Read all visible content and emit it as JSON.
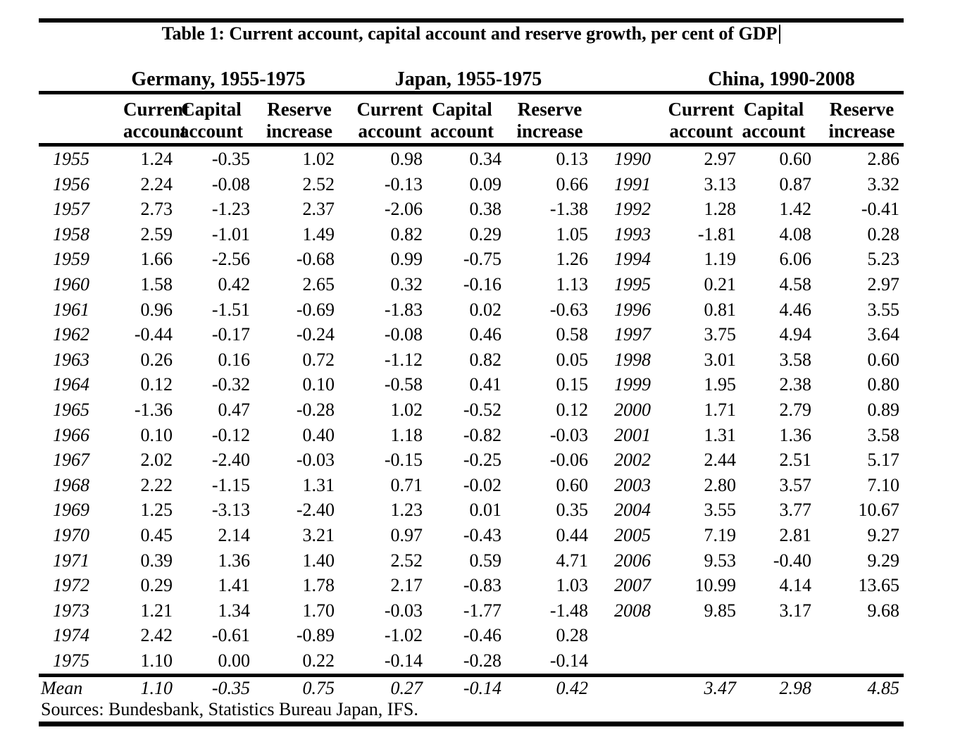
{
  "title": "Table 1: Current account, capital account and reserve growth, per cent of GDP",
  "groups": [
    {
      "label": "Germany, 1955-1975"
    },
    {
      "label": "Japan, 1955-1975"
    },
    {
      "label": "China, 1990-2008"
    }
  ],
  "col_headers": [
    {
      "line1": "Current",
      "line2": "account"
    },
    {
      "line1": "Capital",
      "line2": "account"
    },
    {
      "line1": "Reserve",
      "line2": "increase"
    }
  ],
  "rows": [
    {
      "year": "1955",
      "germany": [
        "1.24",
        "-0.35",
        "1.02"
      ],
      "japan": [
        "0.98",
        "0.34",
        "0.13"
      ],
      "china_year": "1990",
      "china": [
        "2.97",
        "0.60",
        "2.86"
      ]
    },
    {
      "year": "1956",
      "germany": [
        "2.24",
        "-0.08",
        "2.52"
      ],
      "japan": [
        "-0.13",
        "0.09",
        "0.66"
      ],
      "china_year": "1991",
      "china": [
        "3.13",
        "0.87",
        "3.32"
      ]
    },
    {
      "year": "1957",
      "germany": [
        "2.73",
        "-1.23",
        "2.37"
      ],
      "japan": [
        "-2.06",
        "0.38",
        "-1.38"
      ],
      "china_year": "1992",
      "china": [
        "1.28",
        "1.42",
        "-0.41"
      ]
    },
    {
      "year": "1958",
      "germany": [
        "2.59",
        "-1.01",
        "1.49"
      ],
      "japan": [
        "0.82",
        "0.29",
        "1.05"
      ],
      "china_year": "1993",
      "china": [
        "-1.81",
        "4.08",
        "0.28"
      ]
    },
    {
      "year": "1959",
      "germany": [
        "1.66",
        "-2.56",
        "-0.68"
      ],
      "japan": [
        "0.99",
        "-0.75",
        "1.26"
      ],
      "china_year": "1994",
      "china": [
        "1.19",
        "6.06",
        "5.23"
      ]
    },
    {
      "year": "1960",
      "germany": [
        "1.58",
        "0.42",
        "2.65"
      ],
      "japan": [
        "0.32",
        "-0.16",
        "1.13"
      ],
      "china_year": "1995",
      "china": [
        "0.21",
        "4.58",
        "2.97"
      ]
    },
    {
      "year": "1961",
      "germany": [
        "0.96",
        "-1.51",
        "-0.69"
      ],
      "japan": [
        "-1.83",
        "0.02",
        "-0.63"
      ],
      "china_year": "1996",
      "china": [
        "0.81",
        "4.46",
        "3.55"
      ]
    },
    {
      "year": "1962",
      "germany": [
        "-0.44",
        "-0.17",
        "-0.24"
      ],
      "japan": [
        "-0.08",
        "0.46",
        "0.58"
      ],
      "china_year": "1997",
      "china": [
        "3.75",
        "4.94",
        "3.64"
      ]
    },
    {
      "year": "1963",
      "germany": [
        "0.26",
        "0.16",
        "0.72"
      ],
      "japan": [
        "-1.12",
        "0.82",
        "0.05"
      ],
      "china_year": "1998",
      "china": [
        "3.01",
        "3.58",
        "0.60"
      ]
    },
    {
      "year": "1964",
      "germany": [
        "0.12",
        "-0.32",
        "0.10"
      ],
      "japan": [
        "-0.58",
        "0.41",
        "0.15"
      ],
      "china_year": "1999",
      "china": [
        "1.95",
        "2.38",
        "0.80"
      ]
    },
    {
      "year": "1965",
      "germany": [
        "-1.36",
        "0.47",
        "-0.28"
      ],
      "japan": [
        "1.02",
        "-0.52",
        "0.12"
      ],
      "china_year": "2000",
      "china": [
        "1.71",
        "2.79",
        "0.89"
      ]
    },
    {
      "year": "1966",
      "germany": [
        "0.10",
        "-0.12",
        "0.40"
      ],
      "japan": [
        "1.18",
        "-0.82",
        "-0.03"
      ],
      "china_year": "2001",
      "china": [
        "1.31",
        "1.36",
        "3.58"
      ]
    },
    {
      "year": "1967",
      "germany": [
        "2.02",
        "-2.40",
        "-0.03"
      ],
      "japan": [
        "-0.15",
        "-0.25",
        "-0.06"
      ],
      "china_year": "2002",
      "china": [
        "2.44",
        "2.51",
        "5.17"
      ]
    },
    {
      "year": "1968",
      "germany": [
        "2.22",
        "-1.15",
        "1.31"
      ],
      "japan": [
        "0.71",
        "-0.02",
        "0.60"
      ],
      "china_year": "2003",
      "china": [
        "2.80",
        "3.57",
        "7.10"
      ]
    },
    {
      "year": "1969",
      "germany": [
        "1.25",
        "-3.13",
        "-2.40"
      ],
      "japan": [
        "1.23",
        "0.01",
        "0.35"
      ],
      "china_year": "2004",
      "china": [
        "3.55",
        "3.77",
        "10.67"
      ]
    },
    {
      "year": "1970",
      "germany": [
        "0.45",
        "2.14",
        "3.21"
      ],
      "japan": [
        "0.97",
        "-0.43",
        "0.44"
      ],
      "china_year": "2005",
      "china": [
        "7.19",
        "2.81",
        "9.27"
      ]
    },
    {
      "year": "1971",
      "germany": [
        "0.39",
        "1.36",
        "1.40"
      ],
      "japan": [
        "2.52",
        "0.59",
        "4.71"
      ],
      "china_year": "2006",
      "china": [
        "9.53",
        "-0.40",
        "9.29"
      ]
    },
    {
      "year": "1972",
      "germany": [
        "0.29",
        "1.41",
        "1.78"
      ],
      "japan": [
        "2.17",
        "-0.83",
        "1.03"
      ],
      "china_year": "2007",
      "china": [
        "10.99",
        "4.14",
        "13.65"
      ]
    },
    {
      "year": "1973",
      "germany": [
        "1.21",
        "1.34",
        "1.70"
      ],
      "japan": [
        "-0.03",
        "-1.77",
        "-1.48"
      ],
      "china_year": "2008",
      "china": [
        "9.85",
        "3.17",
        "9.68"
      ]
    },
    {
      "year": "1974",
      "germany": [
        "2.42",
        "-0.61",
        "-0.89"
      ],
      "japan": [
        "-1.02",
        "-0.46",
        "0.28"
      ],
      "china_year": "",
      "china": [
        "",
        "",
        ""
      ]
    },
    {
      "year": "1975",
      "germany": [
        "1.10",
        "0.00",
        "0.22"
      ],
      "japan": [
        "-0.14",
        "-0.28",
        "-0.14"
      ],
      "china_year": "",
      "china": [
        "",
        "",
        ""
      ]
    }
  ],
  "mean_row": {
    "label": "Mean",
    "germany": [
      "1.10",
      "-0.35",
      "0.75"
    ],
    "japan": [
      "0.27",
      "-0.14",
      "0.42"
    ],
    "china": [
      "3.47",
      "2.98",
      "4.85"
    ]
  },
  "sources": "Sources: Bundesbank, Statistics Bureau Japan, IFS."
}
